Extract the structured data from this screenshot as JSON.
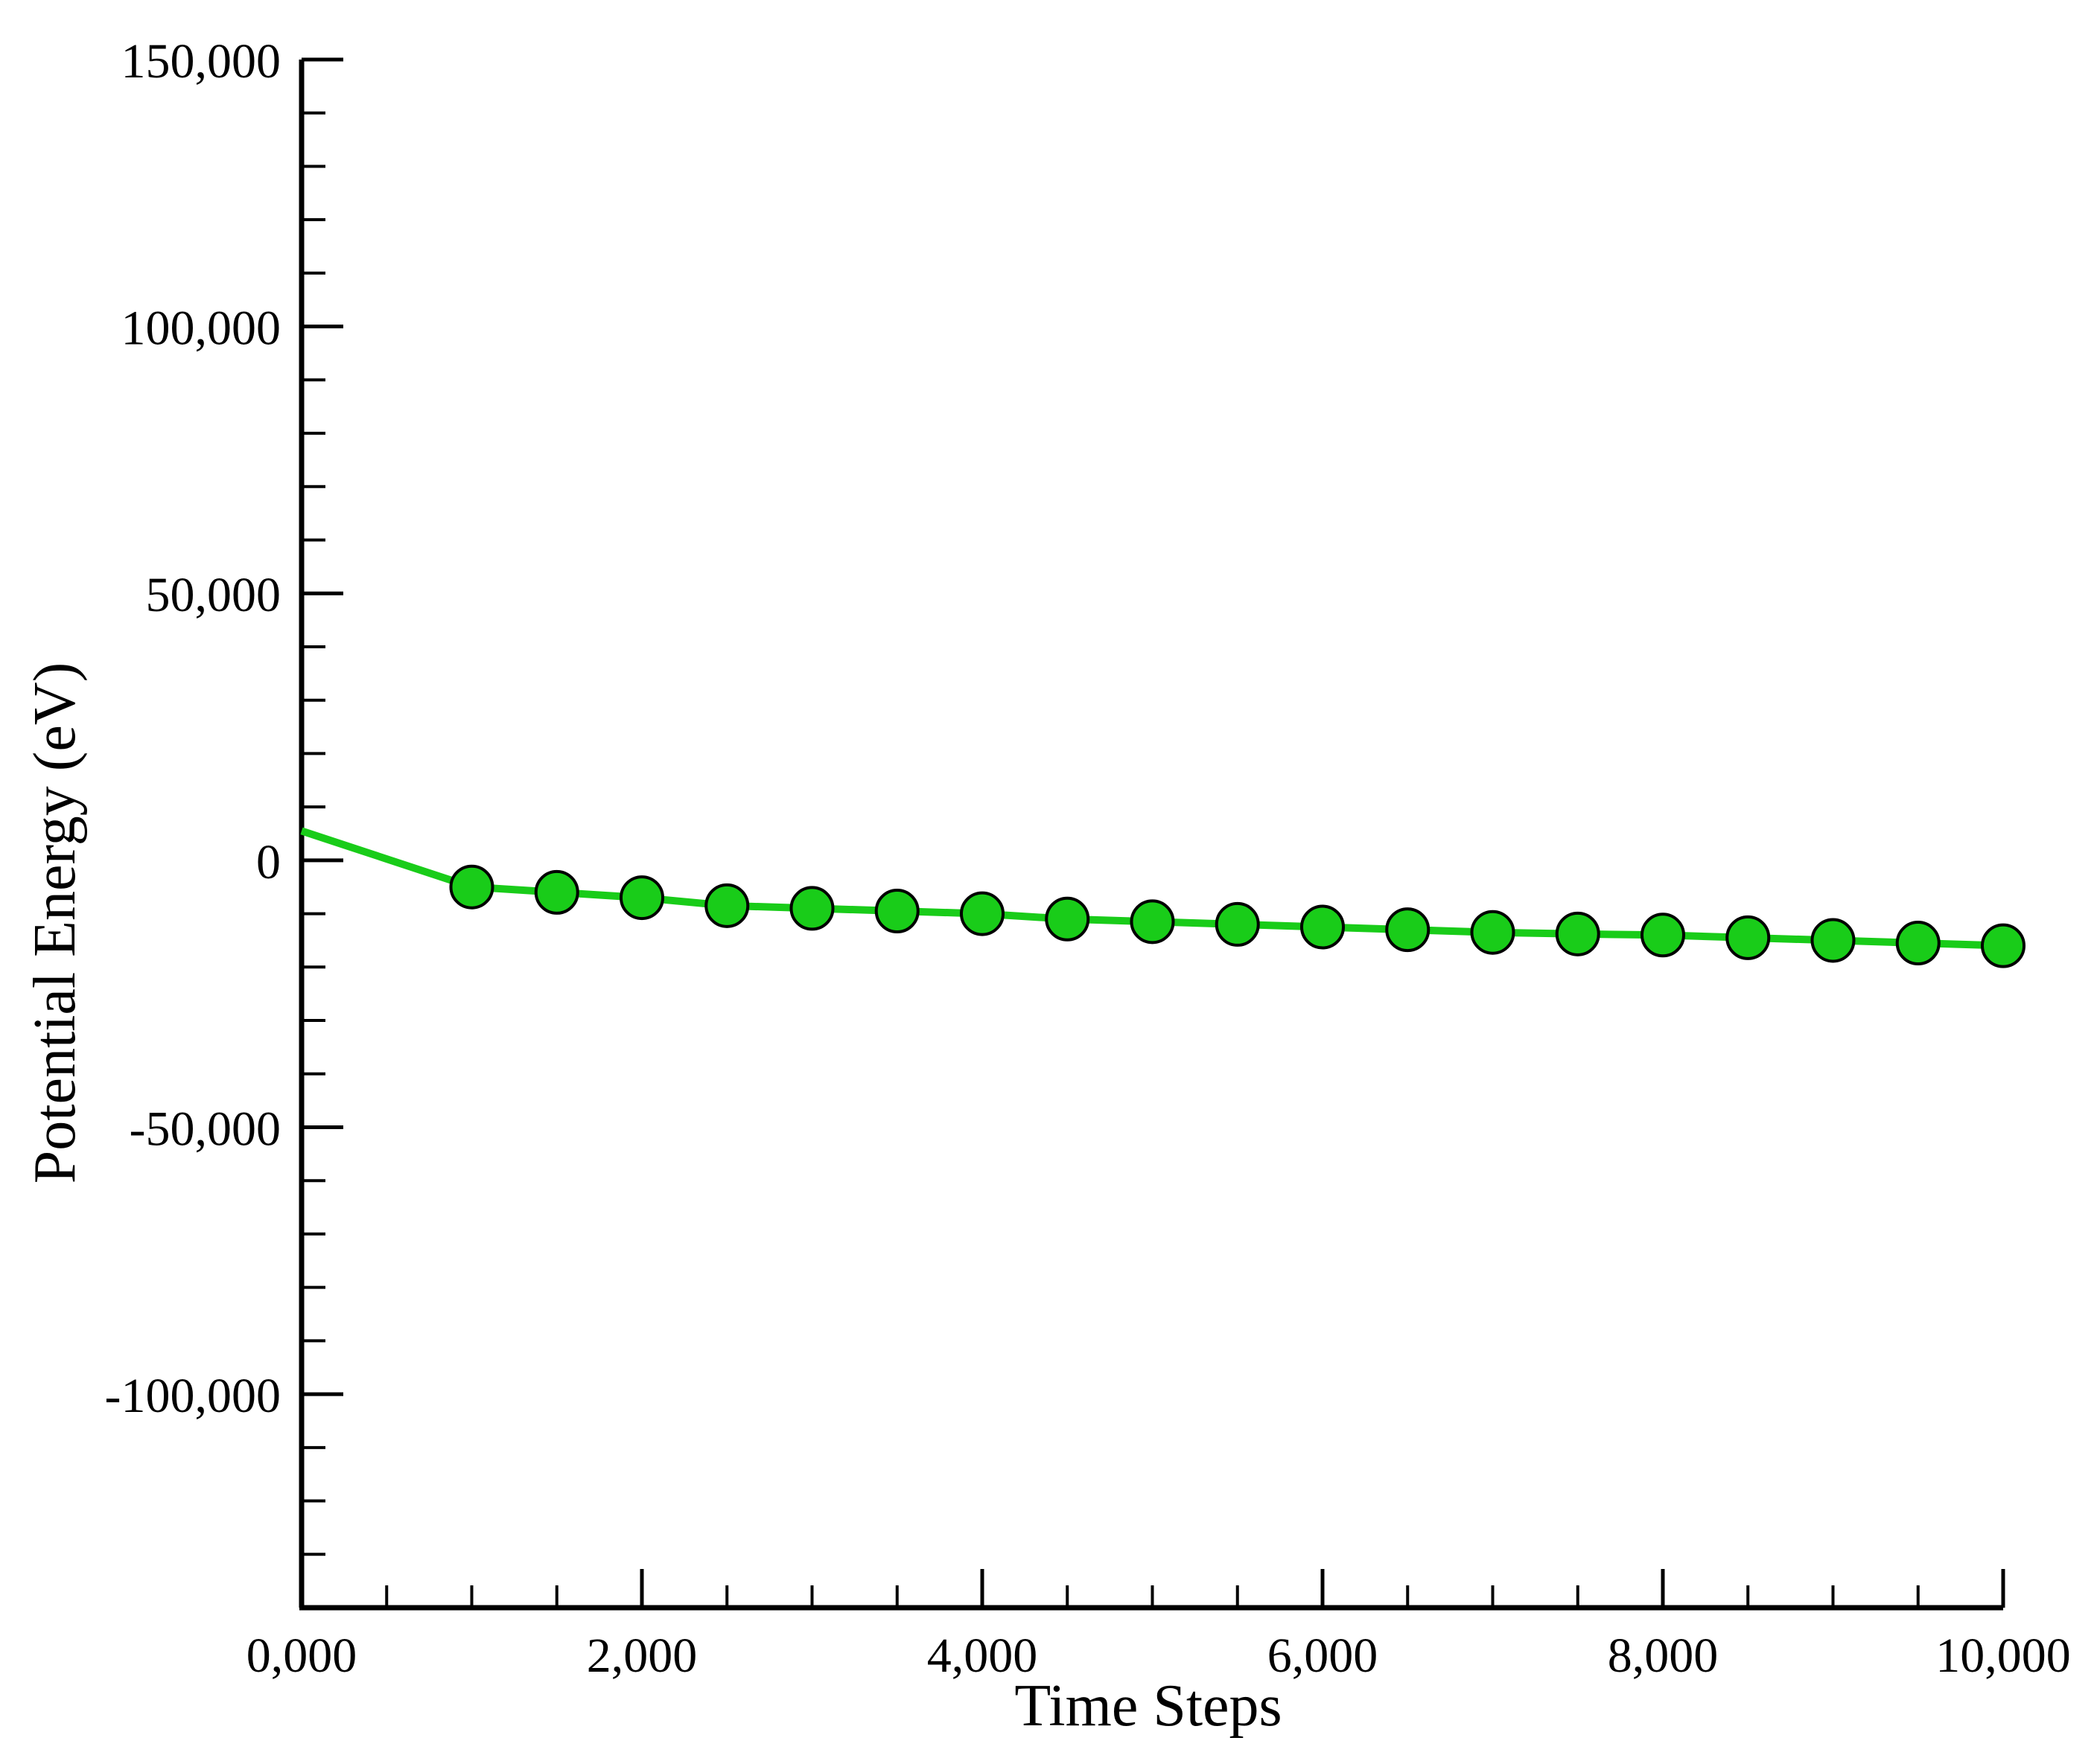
{
  "chart_data": {
    "type": "line",
    "xlabel": "Time Steps",
    "ylabel": "Potential Energy (eV)",
    "xlim": [
      0,
      10000
    ],
    "ylim": [
      -140000,
      150000
    ],
    "x_ticks": [
      {
        "value": 0,
        "label": "0,000"
      },
      {
        "value": 2000,
        "label": "2,000"
      },
      {
        "value": 4000,
        "label": "4,000"
      },
      {
        "value": 6000,
        "label": "6,000"
      },
      {
        "value": 8000,
        "label": "8,000"
      },
      {
        "value": 10000,
        "label": "10,000"
      }
    ],
    "x_minor_step": 500,
    "y_ticks": [
      {
        "value": 150000,
        "label": "150,000"
      },
      {
        "value": 100000,
        "label": "100,000"
      },
      {
        "value": 50000,
        "label": "50,000"
      },
      {
        "value": 0,
        "label": "0"
      },
      {
        "value": -50000,
        "label": "-50,000"
      },
      {
        "value": -100000,
        "label": "-100,000"
      }
    ],
    "y_minor_step": 10000,
    "grid": false,
    "legend": "none",
    "line_color": "#19cc19",
    "marker_color": "#19cc19",
    "marker_edge_color": "#000000",
    "axis_color": "#000000",
    "series": [
      {
        "line_x": [
          0,
          1000,
          1500,
          2000,
          2500,
          3000,
          3500,
          4000,
          4500,
          5000,
          5500,
          6000,
          6500,
          7000,
          7500,
          8000,
          8500,
          9000,
          9500,
          10000
        ],
        "line_y": [
          5500,
          -5000,
          -6000,
          -7000,
          -8500,
          -9000,
          -9500,
          -10000,
          -11000,
          -11500,
          -12000,
          -12500,
          -13000,
          -13500,
          -13800,
          -14000,
          -14500,
          -15000,
          -15500,
          -16000
        ],
        "marker_x": [
          1000,
          1500,
          2000,
          2500,
          3000,
          3500,
          4000,
          4500,
          5000,
          5500,
          6000,
          6500,
          7000,
          7500,
          8000,
          8500,
          9000,
          9500,
          10000
        ],
        "marker_y": [
          -5000,
          -6000,
          -7000,
          -8500,
          -9000,
          -9500,
          -10000,
          -11000,
          -11500,
          -12000,
          -12500,
          -13000,
          -13500,
          -13800,
          -14000,
          -14500,
          -15000,
          -15500,
          -16000
        ]
      }
    ]
  }
}
